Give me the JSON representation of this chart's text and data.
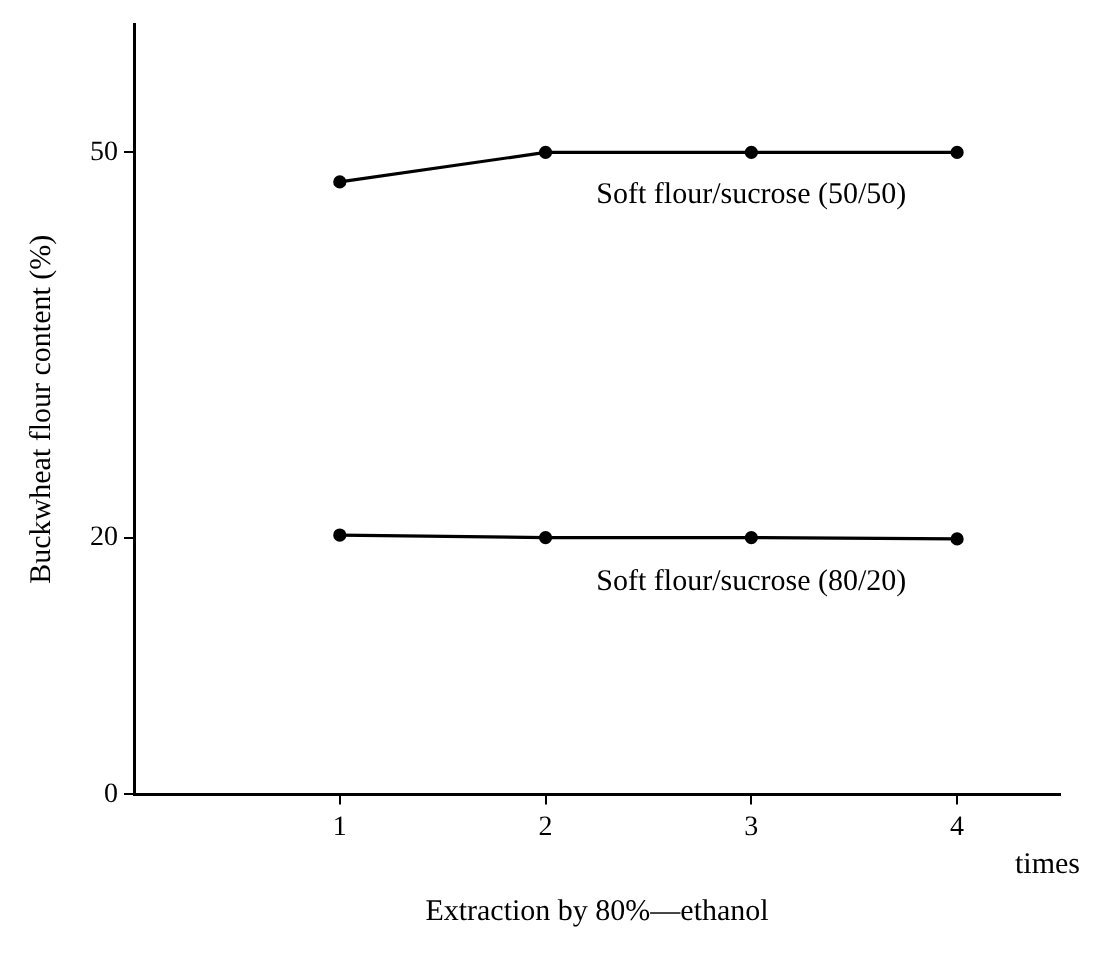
{
  "chart_data": {
    "type": "line",
    "xlabel": "Extraction by 80%—ethanol",
    "ylabel": "Buckwheat flour content (%)",
    "annotations": [
      "times"
    ],
    "x": [
      1,
      2,
      3,
      4
    ],
    "xlim": [
      0,
      4.5
    ],
    "xticks": [
      1,
      2,
      3,
      4
    ],
    "ylim": [
      0,
      60
    ],
    "yticks": [
      0,
      20,
      50
    ],
    "grid": false,
    "legend": false,
    "marker": "circle",
    "line_style": "solid",
    "series": [
      {
        "name": "Soft flour/sucrose (50/50)",
        "color": "#000000",
        "values": [
          47.7,
          50,
          50,
          50
        ]
      },
      {
        "name": "Soft flour/sucrose (80/20)",
        "color": "#000000",
        "values": [
          20.2,
          20,
          20,
          19.9
        ]
      }
    ]
  }
}
